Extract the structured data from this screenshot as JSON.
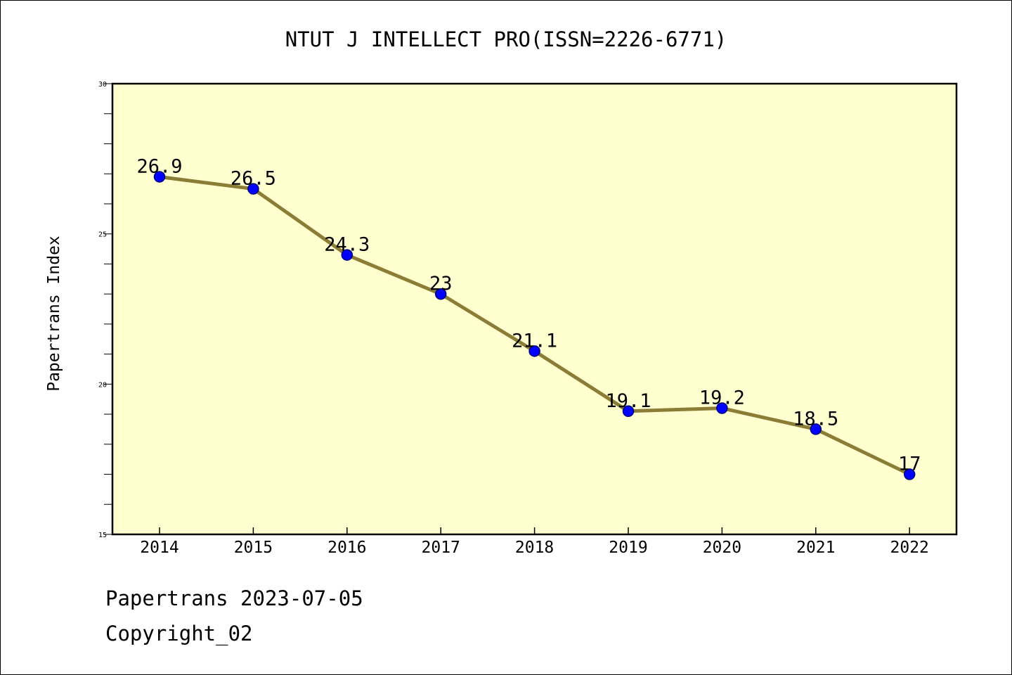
{
  "chart_data": {
    "type": "line",
    "title": "NTUT J INTELLECT PRO(ISSN=2226-6771)",
    "xlabel": "",
    "ylabel": "Papertrans Index",
    "categories": [
      "2014",
      "2015",
      "2016",
      "2017",
      "2018",
      "2019",
      "2020",
      "2021",
      "2022"
    ],
    "series": [
      {
        "values": [
          26.9,
          26.5,
          24.3,
          23,
          21.1,
          19.1,
          19.2,
          18.5,
          17
        ],
        "data_labels": [
          "26.9",
          "26.5",
          "24.3",
          "23",
          "21.1",
          "19.1",
          "19.2",
          "18.5",
          "17"
        ]
      }
    ],
    "ylim": [
      15,
      30
    ],
    "yticks": [
      {
        "value": 15,
        "label": "15"
      },
      {
        "value": 20,
        "label": "20"
      },
      {
        "value": 25,
        "label": "25"
      },
      {
        "value": 30,
        "label": "30"
      }
    ],
    "y_minor_step": 1,
    "grid": false,
    "legend": "none",
    "colors": {
      "plot_background": "#ffffd0",
      "line": "#8b7d36",
      "marker_fill": "#0000ff",
      "marker_stroke": "#000080",
      "axis": "#000000"
    }
  },
  "footer": {
    "line1": "Papertrans 2023-07-05",
    "line2": "Copyright_02"
  }
}
